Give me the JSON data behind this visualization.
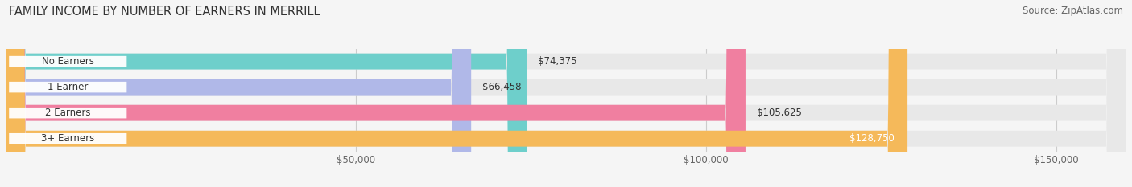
{
  "title": "FAMILY INCOME BY NUMBER OF EARNERS IN MERRILL",
  "source": "Source: ZipAtlas.com",
  "categories": [
    "No Earners",
    "1 Earner",
    "2 Earners",
    "3+ Earners"
  ],
  "values": [
    74375,
    66458,
    105625,
    128750
  ],
  "bar_colors": [
    "#6ecfcb",
    "#b0b8e8",
    "#f07fa0",
    "#f5b95a"
  ],
  "bar_bg_color": "#e8e8e8",
  "label_colors": [
    "#333333",
    "#333333",
    "#333333",
    "#ffffff"
  ],
  "x_min": 0,
  "x_max": 160000,
  "x_ticks": [
    50000,
    100000,
    150000
  ],
  "x_tick_labels": [
    "$50,000",
    "$100,000",
    "$150,000"
  ],
  "title_fontsize": 10.5,
  "source_fontsize": 8.5,
  "bar_label_fontsize": 8.5,
  "category_fontsize": 8.5,
  "tick_fontsize": 8.5,
  "fig_width": 14.06,
  "fig_height": 2.33,
  "bg_color": "#f5f5f5",
  "value_labels": [
    "$74,375",
    "$66,458",
    "$105,625",
    "$128,750"
  ]
}
